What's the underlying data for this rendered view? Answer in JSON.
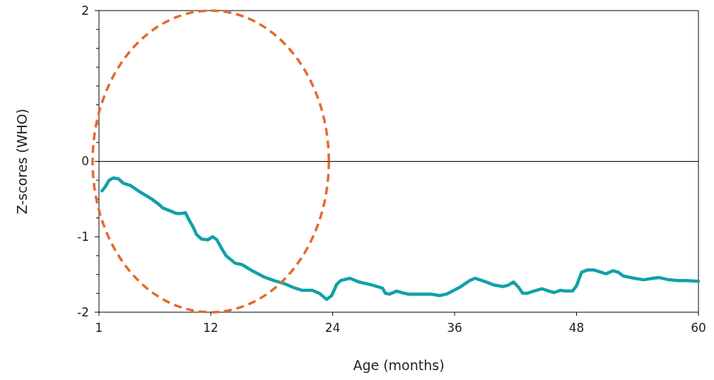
{
  "chart_data": {
    "type": "line",
    "xlabel": "Age (months)",
    "ylabel": "Z-scores (WHO)",
    "xlim": [
      1,
      60
    ],
    "xticks": [
      1,
      12,
      24,
      36,
      48,
      60
    ],
    "ylim": [
      -2,
      2
    ],
    "yticks": [
      -2,
      {
        "value": -1.75,
        "label": null
      },
      {
        "value": -1.5,
        "label": null
      },
      {
        "value": -1.25,
        "label": null
      },
      -1,
      {
        "value": -0.75,
        "label": null
      },
      {
        "value": -0.5,
        "label": null
      },
      {
        "value": -0.25,
        "label": null
      },
      0,
      {
        "value": 0.25,
        "label": null
      },
      {
        "value": 0.5,
        "label": null
      },
      {
        "value": 0.75,
        "label": null
      },
      {
        "value": 1,
        "label": null
      },
      {
        "value": 1.25,
        "label": null
      },
      {
        "value": 1.5,
        "label": null
      },
      {
        "value": 1.75,
        "label": null
      },
      2
    ],
    "grid": false,
    "marker": "none",
    "line_style": "solid",
    "ref_lines": [
      {
        "axis": "y",
        "value": 0,
        "color": "#000000"
      }
    ],
    "series": [
      {
        "color": "#11a0aa",
        "x": [
          1.3,
          1.6,
          2.0,
          2.4,
          2.9,
          3.4,
          4.1,
          5.1,
          6.2,
          6.9,
          7.3,
          7.9,
          8.6,
          9.1,
          9.5,
          9.8,
          10.3,
          10.6,
          11.1,
          11.7,
          12.2,
          12.6,
          13.1,
          13.5,
          14.4,
          15.1,
          16.2,
          17.2,
          18.2,
          19.2,
          20.1,
          21.0,
          22.0,
          22.7,
          23.4,
          23.9,
          24.4,
          24.8,
          25.7,
          26.6,
          27.9,
          28.9,
          29.2,
          29.6,
          30.3,
          30.8,
          31.4,
          32.7,
          33.7,
          34.5,
          35.2,
          36.5,
          37.5,
          38.0,
          38.9,
          39.9,
          40.8,
          41.3,
          41.8,
          42.3,
          42.7,
          43.1,
          43.8,
          44.6,
          45.3,
          45.8,
          46.4,
          47.0,
          47.6,
          48.0,
          48.5,
          49.1,
          49.7,
          50.4,
          50.9,
          51.6,
          52.1,
          52.6,
          53.7,
          54.6,
          55.5,
          56.1,
          57.1,
          58.0,
          58.8,
          60.0
        ],
        "values": [
          -0.39,
          -0.34,
          -0.25,
          -0.22,
          -0.23,
          -0.29,
          -0.32,
          -0.41,
          -0.5,
          -0.57,
          -0.62,
          -0.65,
          -0.69,
          -0.69,
          -0.68,
          -0.76,
          -0.88,
          -0.97,
          -1.03,
          -1.04,
          -1.0,
          -1.04,
          -1.16,
          -1.25,
          -1.35,
          -1.37,
          -1.46,
          -1.53,
          -1.58,
          -1.62,
          -1.67,
          -1.71,
          -1.71,
          -1.75,
          -1.83,
          -1.78,
          -1.63,
          -1.58,
          -1.55,
          -1.6,
          -1.64,
          -1.68,
          -1.75,
          -1.76,
          -1.72,
          -1.74,
          -1.76,
          -1.76,
          -1.76,
          -1.78,
          -1.76,
          -1.67,
          -1.58,
          -1.55,
          -1.59,
          -1.64,
          -1.66,
          -1.64,
          -1.6,
          -1.67,
          -1.75,
          -1.75,
          -1.72,
          -1.69,
          -1.72,
          -1.74,
          -1.71,
          -1.72,
          -1.72,
          -1.65,
          -1.47,
          -1.44,
          -1.44,
          -1.47,
          -1.49,
          -1.45,
          -1.47,
          -1.52,
          -1.55,
          -1.57,
          -1.55,
          -1.54,
          -1.57,
          -1.58,
          -1.58,
          -1.59
        ]
      }
    ]
  }
}
